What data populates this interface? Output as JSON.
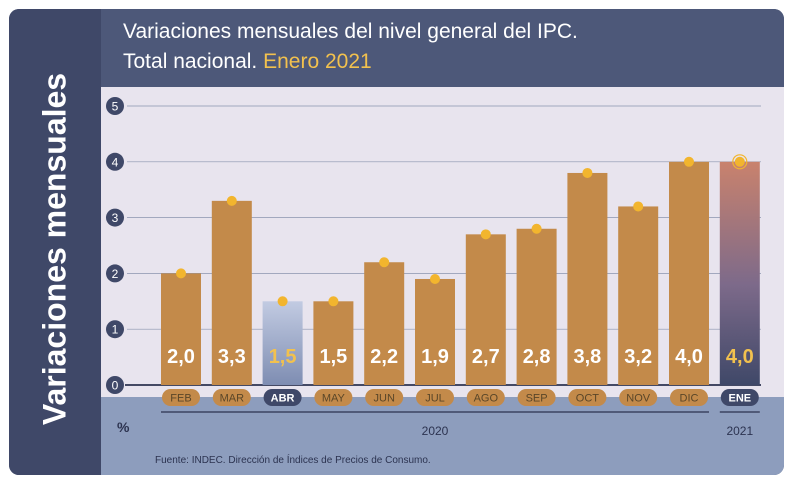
{
  "title": {
    "line1": "Variaciones mensuales del nivel general del IPC.",
    "line2_prefix": "Total nacional.",
    "line2_highlight": "Enero 2021"
  },
  "side_label": "Variaciones mensuales",
  "unit_label": "%",
  "source": "Fuente: INDEC. Dirección de Índices de Precios de Consumo.",
  "colors": {
    "bar": "#c38a4a",
    "bar_highlight": "#9aa7c8",
    "dot": "#f2b52e",
    "label_highlight": "#f2c14e",
    "pill": "#c38a4a",
    "pill_active": "#3f4868"
  },
  "chart_data": {
    "type": "bar",
    "title": "Variaciones mensuales del nivel general del IPC. Total nacional. Enero 2021",
    "ylabel": "Variaciones mensuales",
    "unit": "%",
    "ylim": [
      0,
      5
    ],
    "yticks": [
      0,
      1,
      2,
      3,
      4,
      5
    ],
    "categories": [
      "FEB",
      "MAR",
      "ABR",
      "MAY",
      "JUN",
      "JUL",
      "AGO",
      "SEP",
      "OCT",
      "NOV",
      "DIC",
      "ENE"
    ],
    "values": [
      2.0,
      3.3,
      1.5,
      1.5,
      2.2,
      1.9,
      2.7,
      2.8,
      3.8,
      3.2,
      4.0,
      4.0
    ],
    "value_labels": [
      "2,0",
      "3,3",
      "1,5",
      "1,5",
      "2,2",
      "1,9",
      "2,7",
      "2,8",
      "3,8",
      "3,2",
      "4,0",
      "4,0"
    ],
    "highlighted": [
      "ABR",
      "ENE"
    ],
    "year_groups": [
      {
        "label": "2020",
        "categories": [
          "FEB",
          "MAR",
          "ABR",
          "MAY",
          "JUN",
          "JUL",
          "AGO",
          "SEP",
          "OCT",
          "NOV",
          "DIC"
        ]
      },
      {
        "label": "2021",
        "categories": [
          "ENE"
        ]
      }
    ]
  }
}
